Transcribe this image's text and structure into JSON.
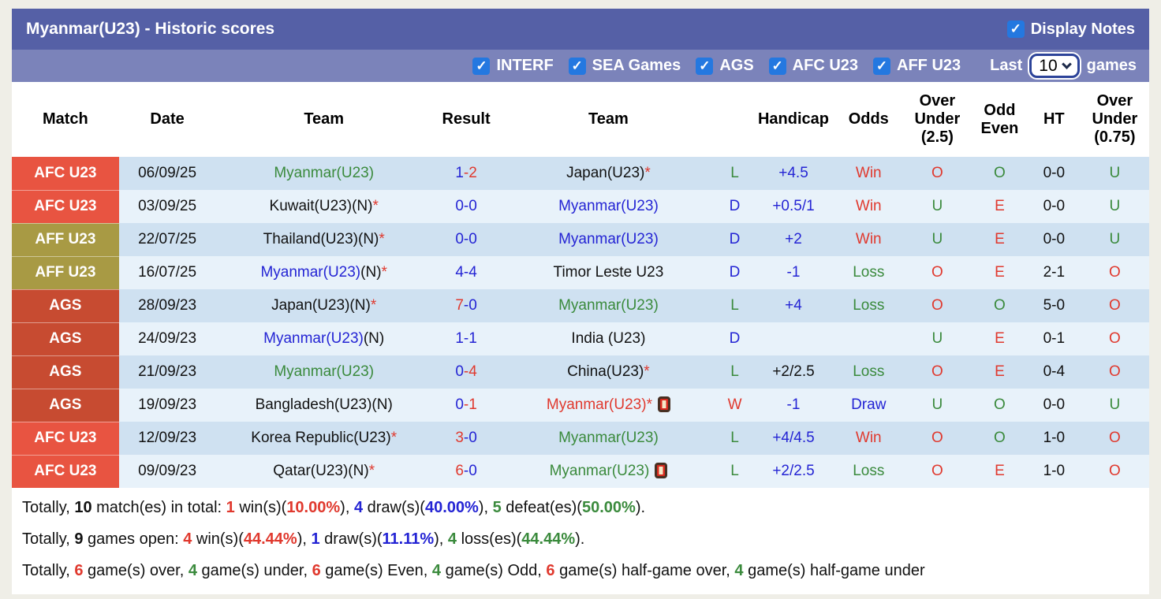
{
  "header": {
    "title": "Myanmar(U23) - Historic scores",
    "display_notes_label": "Display Notes"
  },
  "icons": {
    "check": "✓",
    "red_card": "red-card",
    "select_chevron": "chevron-down"
  },
  "filter": {
    "items": [
      "INTERF",
      "SEA Games",
      "AGS",
      "AFC U23",
      "AFF U23"
    ],
    "last_label": "Last",
    "games_count": "10",
    "games_label": "games"
  },
  "colors": {
    "accent_header": "#5560a6",
    "accent_filter": "#7b83ba",
    "checkbox_blue": "#2478e0",
    "badge_afc": "#e85441",
    "badge_aff": "#a89a44",
    "badge_ags": "#c74b31",
    "row_odd": "#cfe1f1",
    "row_even": "#e8f2fa",
    "text_blue": "#2424d4",
    "text_red": "#e0392e",
    "text_green": "#3a8a3c"
  },
  "table": {
    "headers": [
      "Match",
      "Date",
      "Team",
      "Result",
      "Team",
      "",
      "Handicap",
      "Odds",
      "Over\nUnder\n(2.5)",
      "Odd\nEven",
      "HT",
      "Over\nUnder\n(0.75)"
    ],
    "rows": [
      {
        "league": "AFC U23",
        "league_class": "afc",
        "date": "06/09/25",
        "team1": [
          [
            "Myanmar(U23)",
            "green"
          ]
        ],
        "team1_card": false,
        "result": [
          [
            "1",
            "blue"
          ],
          [
            "-2",
            "red"
          ]
        ],
        "team2": [
          [
            "Japan(U23)",
            "black"
          ],
          [
            "*",
            "red"
          ]
        ],
        "team2_card": false,
        "wdl": [
          "L",
          "green"
        ],
        "handicap": [
          "+4.5",
          "blue"
        ],
        "odds": [
          "Win",
          "red"
        ],
        "ou25": [
          "O",
          "red"
        ],
        "oddeven": [
          "O",
          "green"
        ],
        "ht": [
          "0-0",
          "black"
        ],
        "ou075": [
          "U",
          "green"
        ]
      },
      {
        "league": "AFC U23",
        "league_class": "afc",
        "date": "03/09/25",
        "team1": [
          [
            "Kuwait(U23)(N)",
            "black"
          ],
          [
            "*",
            "red"
          ]
        ],
        "team1_card": false,
        "result": [
          [
            "0-0",
            "blue"
          ]
        ],
        "team2": [
          [
            "Myanmar(U23)",
            "blue"
          ]
        ],
        "team2_card": false,
        "wdl": [
          "D",
          "blue"
        ],
        "handicap": [
          "+0.5/1",
          "blue"
        ],
        "odds": [
          "Win",
          "red"
        ],
        "ou25": [
          "U",
          "green"
        ],
        "oddeven": [
          "E",
          "red"
        ],
        "ht": [
          "0-0",
          "black"
        ],
        "ou075": [
          "U",
          "green"
        ]
      },
      {
        "league": "AFF U23",
        "league_class": "aff",
        "date": "22/07/25",
        "team1": [
          [
            "Thailand(U23)(N)",
            "black"
          ],
          [
            "*",
            "red"
          ]
        ],
        "team1_card": false,
        "result": [
          [
            "0-0",
            "blue"
          ]
        ],
        "team2": [
          [
            "Myanmar(U23)",
            "blue"
          ]
        ],
        "team2_card": false,
        "wdl": [
          "D",
          "blue"
        ],
        "handicap": [
          "+2",
          "blue"
        ],
        "odds": [
          "Win",
          "red"
        ],
        "ou25": [
          "U",
          "green"
        ],
        "oddeven": [
          "E",
          "red"
        ],
        "ht": [
          "0-0",
          "black"
        ],
        "ou075": [
          "U",
          "green"
        ]
      },
      {
        "league": "AFF U23",
        "league_class": "aff",
        "date": "16/07/25",
        "team1": [
          [
            "Myanmar(U23)",
            "blue"
          ],
          [
            "(N)",
            "black"
          ],
          [
            "*",
            "red"
          ]
        ],
        "team1_card": false,
        "result": [
          [
            "4-4",
            "blue"
          ]
        ],
        "team2": [
          [
            "Timor Leste U23",
            "black"
          ]
        ],
        "team2_card": false,
        "wdl": [
          "D",
          "blue"
        ],
        "handicap": [
          "-1",
          "blue"
        ],
        "odds": [
          "Loss",
          "green"
        ],
        "ou25": [
          "O",
          "red"
        ],
        "oddeven": [
          "E",
          "red"
        ],
        "ht": [
          "2-1",
          "black"
        ],
        "ou075": [
          "O",
          "red"
        ]
      },
      {
        "league": "AGS",
        "league_class": "ags",
        "date": "28/09/23",
        "team1": [
          [
            "Japan(U23)(N)",
            "black"
          ],
          [
            "*",
            "red"
          ]
        ],
        "team1_card": false,
        "result": [
          [
            "7",
            "red"
          ],
          [
            "-0",
            "blue"
          ]
        ],
        "team2": [
          [
            "Myanmar(U23)",
            "green"
          ]
        ],
        "team2_card": false,
        "wdl": [
          "L",
          "green"
        ],
        "handicap": [
          "+4",
          "blue"
        ],
        "odds": [
          "Loss",
          "green"
        ],
        "ou25": [
          "O",
          "red"
        ],
        "oddeven": [
          "O",
          "green"
        ],
        "ht": [
          "5-0",
          "black"
        ],
        "ou075": [
          "O",
          "red"
        ]
      },
      {
        "league": "AGS",
        "league_class": "ags",
        "date": "24/09/23",
        "team1": [
          [
            "Myanmar(U23)",
            "blue"
          ],
          [
            "(N)",
            "black"
          ]
        ],
        "team1_card": false,
        "result": [
          [
            "1-1",
            "blue"
          ]
        ],
        "team2": [
          [
            "India (U23)",
            "black"
          ]
        ],
        "team2_card": false,
        "wdl": [
          "D",
          "blue"
        ],
        "handicap": null,
        "odds": null,
        "ou25": [
          "U",
          "green"
        ],
        "oddeven": [
          "E",
          "red"
        ],
        "ht": [
          "0-1",
          "black"
        ],
        "ou075": [
          "O",
          "red"
        ]
      },
      {
        "league": "AGS",
        "league_class": "ags",
        "date": "21/09/23",
        "team1": [
          [
            "Myanmar(U23)",
            "green"
          ]
        ],
        "team1_card": false,
        "result": [
          [
            "0",
            "blue"
          ],
          [
            "-4",
            "red"
          ]
        ],
        "team2": [
          [
            "China(U23)",
            "black"
          ],
          [
            "*",
            "red"
          ]
        ],
        "team2_card": false,
        "wdl": [
          "L",
          "green"
        ],
        "handicap": [
          "+2/2.5",
          "black"
        ],
        "odds": [
          "Loss",
          "green"
        ],
        "ou25": [
          "O",
          "red"
        ],
        "oddeven": [
          "E",
          "red"
        ],
        "ht": [
          "0-4",
          "black"
        ],
        "ou075": [
          "O",
          "red"
        ]
      },
      {
        "league": "AGS",
        "league_class": "ags",
        "date": "19/09/23",
        "team1": [
          [
            "Bangladesh(U23)(N)",
            "black"
          ]
        ],
        "team1_card": false,
        "result": [
          [
            "0",
            "blue"
          ],
          [
            "-1",
            "red"
          ]
        ],
        "team2": [
          [
            "Myanmar(U23)",
            "red"
          ],
          [
            "*",
            "red"
          ]
        ],
        "team2_card": true,
        "wdl": [
          "W",
          "red"
        ],
        "handicap": [
          "-1",
          "blue"
        ],
        "odds": [
          "Draw",
          "blue"
        ],
        "ou25": [
          "U",
          "green"
        ],
        "oddeven": [
          "O",
          "green"
        ],
        "ht": [
          "0-0",
          "black"
        ],
        "ou075": [
          "U",
          "green"
        ]
      },
      {
        "league": "AFC U23",
        "league_class": "afc",
        "date": "12/09/23",
        "team1": [
          [
            "Korea Republic(U23)",
            "black"
          ],
          [
            "*",
            "red"
          ]
        ],
        "team1_card": false,
        "result": [
          [
            "3",
            "red"
          ],
          [
            "-0",
            "blue"
          ]
        ],
        "team2": [
          [
            "Myanmar(U23)",
            "green"
          ]
        ],
        "team2_card": false,
        "wdl": [
          "L",
          "green"
        ],
        "handicap": [
          "+4/4.5",
          "blue"
        ],
        "odds": [
          "Win",
          "red"
        ],
        "ou25": [
          "O",
          "red"
        ],
        "oddeven": [
          "O",
          "green"
        ],
        "ht": [
          "1-0",
          "black"
        ],
        "ou075": [
          "O",
          "red"
        ]
      },
      {
        "league": "AFC U23",
        "league_class": "afc",
        "date": "09/09/23",
        "team1": [
          [
            "Qatar(U23)(N)",
            "black"
          ],
          [
            "*",
            "red"
          ]
        ],
        "team1_card": false,
        "result": [
          [
            "6",
            "red"
          ],
          [
            "-0",
            "blue"
          ]
        ],
        "team2": [
          [
            "Myanmar(U23)",
            "green"
          ]
        ],
        "team2_card": true,
        "wdl": [
          "L",
          "green"
        ],
        "handicap": [
          "+2/2.5",
          "blue"
        ],
        "odds": [
          "Loss",
          "green"
        ],
        "ou25": [
          "O",
          "red"
        ],
        "oddeven": [
          "E",
          "red"
        ],
        "ht": [
          "1-0",
          "black"
        ],
        "ou075": [
          "O",
          "red"
        ]
      }
    ]
  },
  "footer": {
    "lines": [
      [
        [
          "Totally, ",
          "black",
          false
        ],
        [
          "10",
          "black",
          true
        ],
        [
          " match(es) in total: ",
          "black",
          false
        ],
        [
          "1",
          "red",
          true
        ],
        [
          " win(s)(",
          "black",
          false
        ],
        [
          "10.00%",
          "red",
          true
        ],
        [
          "), ",
          "black",
          false
        ],
        [
          "4",
          "blue",
          true
        ],
        [
          " draw(s)(",
          "black",
          false
        ],
        [
          "40.00%",
          "blue",
          true
        ],
        [
          "), ",
          "black",
          false
        ],
        [
          "5",
          "green",
          true
        ],
        [
          " defeat(es)(",
          "black",
          false
        ],
        [
          "50.00%",
          "green",
          true
        ],
        [
          ").",
          "black",
          false
        ]
      ],
      [
        [
          "Totally, ",
          "black",
          false
        ],
        [
          "9",
          "black",
          true
        ],
        [
          " games open: ",
          "black",
          false
        ],
        [
          "4",
          "red",
          true
        ],
        [
          " win(s)(",
          "black",
          false
        ],
        [
          "44.44%",
          "red",
          true
        ],
        [
          "), ",
          "black",
          false
        ],
        [
          "1",
          "blue",
          true
        ],
        [
          " draw(s)(",
          "black",
          false
        ],
        [
          "11.11%",
          "blue",
          true
        ],
        [
          "), ",
          "black",
          false
        ],
        [
          "4",
          "green",
          true
        ],
        [
          " loss(es)(",
          "black",
          false
        ],
        [
          "44.44%",
          "green",
          true
        ],
        [
          ").",
          "black",
          false
        ]
      ],
      [
        [
          "Totally, ",
          "black",
          false
        ],
        [
          "6",
          "red",
          true
        ],
        [
          " game(s) over, ",
          "black",
          false
        ],
        [
          "4",
          "green",
          true
        ],
        [
          " game(s) under, ",
          "black",
          false
        ],
        [
          "6",
          "red",
          true
        ],
        [
          " game(s) Even, ",
          "black",
          false
        ],
        [
          "4",
          "green",
          true
        ],
        [
          " game(s) Odd, ",
          "black",
          false
        ],
        [
          "6",
          "red",
          true
        ],
        [
          " game(s) half-game over, ",
          "black",
          false
        ],
        [
          "4",
          "green",
          true
        ],
        [
          " game(s) half-game under",
          "black",
          false
        ]
      ]
    ]
  }
}
